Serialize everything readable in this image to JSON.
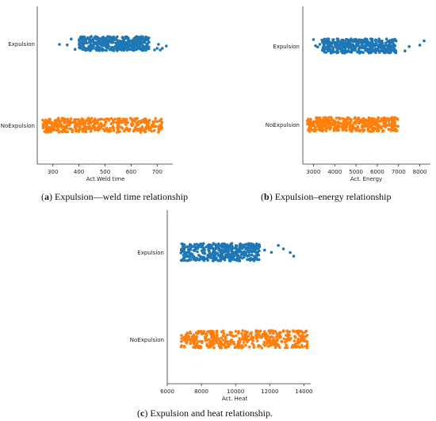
{
  "chart_data": [
    {
      "type": "scatter",
      "panel": "a",
      "caption_letter": "a",
      "caption_text": "Expulsion—weld time relationship",
      "xlabel": "Act.Weld time",
      "ylabel": "",
      "xlim": [
        240,
        760
      ],
      "xticks": [
        300,
        400,
        500,
        600,
        700
      ],
      "categories": [
        "Expulsion",
        "NoExpulsion"
      ],
      "series": [
        {
          "name": "Expulsion",
          "color": "#1f77b4",
          "min": 400,
          "max": 670,
          "outliers": [
            325,
            355,
            370,
            385,
            690,
            700,
            705,
            712,
            720,
            735
          ]
        },
        {
          "name": "NoExpulsion",
          "color": "#ff7f0e",
          "min": 260,
          "max": 720,
          "outliers": []
        }
      ],
      "grid": false
    },
    {
      "type": "scatter",
      "panel": "b",
      "caption_letter": "b",
      "caption_text": "Expulsion–energy relationship",
      "xlabel": "Act. Energy",
      "ylabel": "",
      "xlim": [
        2500,
        8500
      ],
      "xticks": [
        3000,
        4000,
        5000,
        6000,
        7000,
        8000
      ],
      "categories": [
        "Expulsion",
        "NoExpulsion"
      ],
      "series": [
        {
          "name": "Expulsion",
          "color": "#1f77b4",
          "min": 3400,
          "max": 6900,
          "outliers": [
            3000,
            3100,
            3200,
            3300,
            7300,
            7500,
            8000,
            8200
          ]
        },
        {
          "name": "NoExpulsion",
          "color": "#ff7f0e",
          "min": 2700,
          "max": 7000,
          "outliers": []
        }
      ],
      "grid": false
    },
    {
      "type": "scatter",
      "panel": "c",
      "caption_letter": "c",
      "caption_text": "Expulsion and heat relationship.",
      "xlabel": "Act. Heat",
      "ylabel": "",
      "xlim": [
        6000,
        14400
      ],
      "xticks": [
        6000,
        8000,
        10000,
        12000,
        14000
      ],
      "categories": [
        "Expulsion",
        "NoExpulsion"
      ],
      "series": [
        {
          "name": "Expulsion",
          "color": "#1f77b4",
          "min": 6800,
          "max": 11400,
          "outliers": [
            11700,
            12100,
            12500,
            12800,
            13200,
            13400
          ]
        },
        {
          "name": "NoExpulsion",
          "color": "#ff7f0e",
          "min": 6800,
          "max": 14200,
          "outliers": []
        }
      ],
      "grid": false
    }
  ]
}
